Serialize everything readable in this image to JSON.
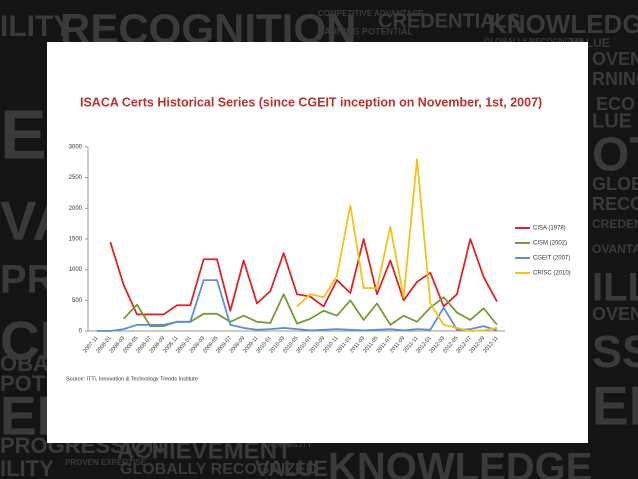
{
  "background_words": [
    "ILITY",
    "RECOGNITION",
    "COMPETITIVE ADVANTAGE",
    "CREDENTIALS",
    "KNOWLEDGE",
    "EARNING POTENTIAL",
    "GLOBALLY RECOGNIZED",
    "VALUE",
    "EX",
    "VAN",
    "PROG",
    "CH",
    "OBALLY",
    "POTENT",
    "ENT",
    "PROGRESSION",
    "ACHIEVEMENT",
    "CREDIBILITY",
    "ILITY",
    "PROVEN EXPERTISE",
    "GLOBALLY RECOGNIZED",
    "VALUE",
    "KNOWLEDGE",
    "OVEN",
    "RNING",
    "ECO",
    "LUE",
    "OTE",
    "GLOBA",
    "RECOG",
    "CREDEN",
    "OVANTA",
    "ILLY",
    "OVEN",
    "SS",
    "ENTI"
  ],
  "chart_data": {
    "type": "line",
    "title": "ISACA Certs Historical Series (since CGEIT inception on November, 1st, 2007)",
    "source": "Source: ITTi, Innovation & Technology Trends Institute",
    "categories": [
      "2007-11",
      "2008-01",
      "2008-03",
      "2008-05",
      "2008-07",
      "2008-09",
      "2008-11",
      "2009-01",
      "2009-03",
      "2009-05",
      "2009-07",
      "2009-09",
      "2009-11",
      "2010-01",
      "2010-03",
      "2010-05",
      "2010-07",
      "2010-09",
      "2010-11",
      "2011-01",
      "2011-03",
      "2011-05",
      "2011-07",
      "2011-09",
      "2011-11",
      "2012-01",
      "2012-03",
      "2012-05",
      "2012-07",
      "2012-09",
      "2012-11"
    ],
    "series": [
      {
        "name": "CISA (1978)",
        "color": "#d9252a",
        "values": [
          null,
          1450,
          750,
          270,
          270,
          270,
          420,
          420,
          1170,
          1170,
          330,
          1150,
          450,
          650,
          1270,
          600,
          560,
          400,
          830,
          620,
          1500,
          600,
          1150,
          500,
          800,
          950,
          400,
          600,
          1500,
          880,
          480
        ]
      },
      {
        "name": "CISM (2002)",
        "color": "#7a9a3a",
        "values": [
          null,
          null,
          200,
          430,
          80,
          80,
          150,
          150,
          280,
          280,
          150,
          250,
          150,
          130,
          600,
          120,
          200,
          330,
          250,
          500,
          180,
          450,
          100,
          250,
          150,
          380,
          550,
          300,
          180,
          370,
          100
        ]
      },
      {
        "name": "CGEIT (2007)",
        "color": "#5b8fd0",
        "values": [
          0,
          0,
          30,
          100,
          100,
          100,
          150,
          150,
          830,
          830,
          100,
          50,
          20,
          30,
          50,
          30,
          10,
          20,
          30,
          20,
          10,
          20,
          30,
          10,
          30,
          20,
          380,
          20,
          30,
          80,
          10
        ]
      },
      {
        "name": "CRISC (2010)",
        "color": "#f2c316",
        "values": [
          null,
          null,
          null,
          null,
          null,
          null,
          null,
          null,
          null,
          null,
          null,
          null,
          null,
          null,
          null,
          400,
          600,
          550,
          900,
          2050,
          700,
          700,
          1700,
          550,
          2800,
          450,
          100,
          50,
          0,
          10,
          50
        ]
      }
    ],
    "ylim": [
      0,
      3000
    ],
    "yticks": [
      0,
      500,
      1000,
      1500,
      2000,
      2500,
      3000
    ]
  }
}
